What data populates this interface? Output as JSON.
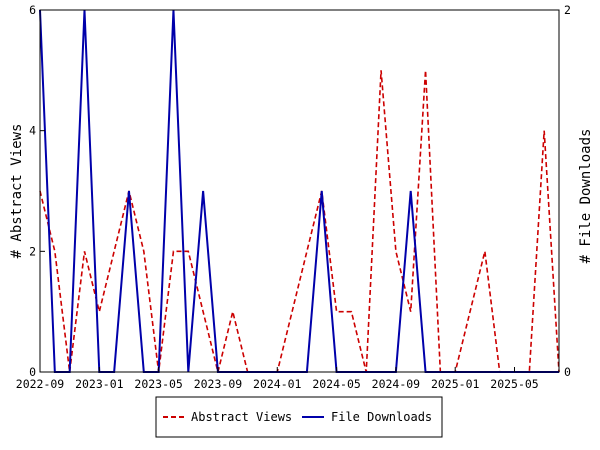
{
  "chart_data": {
    "type": "line",
    "x": [
      "2022-09",
      "2022-10",
      "2022-11",
      "2022-12",
      "2023-01",
      "2023-02",
      "2023-03",
      "2023-04",
      "2023-05",
      "2023-06",
      "2023-07",
      "2023-08",
      "2023-09",
      "2023-10",
      "2023-11",
      "2023-12",
      "2024-01",
      "2024-02",
      "2024-03",
      "2024-04",
      "2024-05",
      "2024-06",
      "2024-07",
      "2024-08",
      "2024-09",
      "2024-10",
      "2024-11",
      "2024-12",
      "2025-01",
      "2025-02",
      "2025-03",
      "2025-04",
      "2025-05",
      "2025-06",
      "2025-07",
      "2025-08"
    ],
    "x_ticks": [
      "2022-09",
      "2023-01",
      "2023-05",
      "2023-09",
      "2024-01",
      "2024-05",
      "2024-09",
      "2025-01",
      "2025-05"
    ],
    "series": [
      {
        "name": "Abstract Views",
        "axis": "left",
        "color": "#cc0000",
        "style": "dashed",
        "values": [
          3,
          2,
          0,
          2,
          1,
          2,
          3,
          2,
          0,
          2,
          2,
          1,
          0,
          1,
          0,
          0,
          0,
          1,
          2,
          3,
          1,
          1,
          0,
          5,
          2,
          1,
          5,
          0,
          0,
          1,
          2,
          0,
          0,
          0,
          4,
          0
        ]
      },
      {
        "name": "File Downloads",
        "axis": "right",
        "color": "#0000aa",
        "style": "solid",
        "values": [
          2,
          0,
          0,
          2,
          0,
          0,
          1,
          0,
          0,
          2,
          0,
          1,
          0,
          0,
          0,
          0,
          0,
          0,
          0,
          1,
          0,
          0,
          0,
          0,
          0,
          1,
          0,
          0,
          0,
          0,
          0,
          0,
          0,
          0,
          0,
          0
        ]
      }
    ],
    "ylabel_left": "# Abstract Views",
    "ylabel_right": "# File Downloads",
    "ylim_left": [
      0,
      6
    ],
    "yticks_left": [
      0,
      2,
      4,
      6
    ],
    "ylim_right": [
      0,
      2
    ],
    "yticks_right": [
      0,
      2
    ],
    "grid": false,
    "legend_position": "bottom-center"
  }
}
